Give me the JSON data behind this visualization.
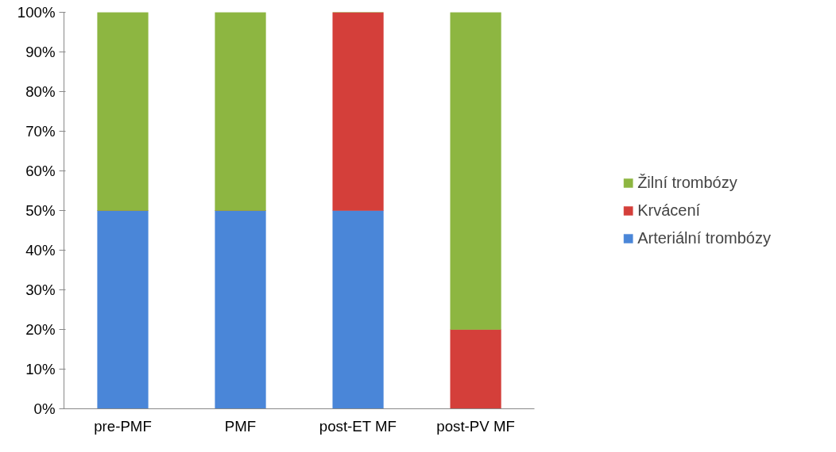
{
  "chart_data": {
    "type": "bar",
    "stacked": true,
    "categories": [
      "pre-PMF",
      "PMF",
      "post-ET MF",
      "post-PV MF"
    ],
    "series": [
      {
        "name": "Arteriální trombózy",
        "color": "#4a86d8",
        "values": [
          50,
          50,
          50,
          0
        ]
      },
      {
        "name": "Krvácení",
        "color": "#d43f3a",
        "values": [
          0,
          0,
          50,
          20
        ]
      },
      {
        "name": "Žilní trombózy",
        "color": "#8db641",
        "values": [
          50,
          50,
          0,
          80
        ]
      }
    ],
    "ylim": [
      0,
      100
    ],
    "yticks": [
      {
        "value": 0,
        "label": "0%"
      },
      {
        "value": 10,
        "label": "10%"
      },
      {
        "value": 20,
        "label": "20%"
      },
      {
        "value": 30,
        "label": "30%"
      },
      {
        "value": 40,
        "label": "40%"
      },
      {
        "value": 50,
        "label": "50%"
      },
      {
        "value": 60,
        "label": "60%"
      },
      {
        "value": 70,
        "label": "70%"
      },
      {
        "value": 80,
        "label": "80%"
      },
      {
        "value": 90,
        "label": "90%"
      },
      {
        "value": 100,
        "label": "100%"
      }
    ],
    "grid": false,
    "legend": "right"
  }
}
